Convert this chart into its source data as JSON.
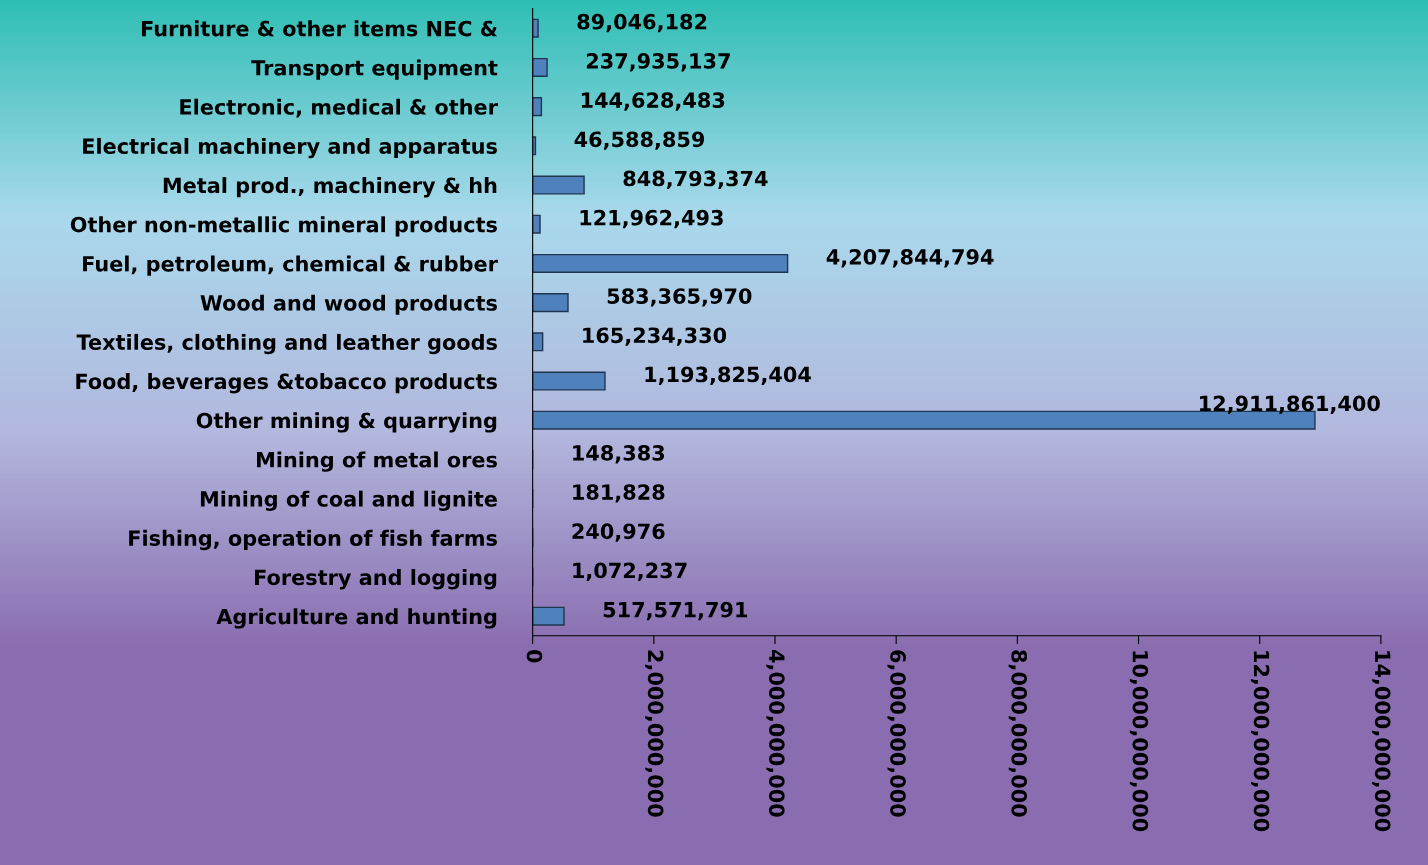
{
  "chart_data": {
    "type": "bar",
    "orientation": "horizontal",
    "categories": [
      "Furniture & other items NEC &",
      "Transport equipment",
      "Electronic, medical & other",
      "Electrical machinery and apparatus",
      "Metal prod., machinery & hh",
      "Other non-metallic mineral products",
      "Fuel, petroleum, chemical & rubber",
      "Wood and wood products",
      "Textiles, clothing and leather goods",
      "Food, beverages &tobacco products",
      "Other mining & quarrying",
      "Mining of metal ores",
      "Mining of coal and lignite",
      "Fishing, operation of fish farms",
      "Forestry and logging",
      "Agriculture and hunting"
    ],
    "values": [
      89046182,
      237935137,
      144628483,
      46588859,
      848793374,
      121962493,
      4207844794,
      583365970,
      165234330,
      1193825404,
      12911861400,
      148383,
      181828,
      240976,
      1072237,
      517571791
    ],
    "value_labels": [
      "89,046,182",
      "237,935,137",
      "144,628,483",
      "46,588,859",
      "848,793,374",
      "121,962,493",
      "4,207,844,794",
      "583,365,970",
      "165,234,330",
      "1,193,825,404",
      "12,911,861,400",
      "148,383",
      "181,828",
      "240,976",
      "1,072,237",
      "517,571,791"
    ],
    "color": "#4f81bd",
    "xlim": [
      0,
      14000000000
    ],
    "xticks": [
      0,
      {
        "value": 2000000000,
        "label": "2,000,000,000"
      },
      {
        "value": 4000000000,
        "label": "4,000,000,000"
      },
      {
        "value": 6000000000,
        "label": "6,000,000,000"
      },
      {
        "value": 8000000000,
        "label": "8,000,000,000"
      },
      {
        "value": 10000000000,
        "label": "10,000,000,000"
      },
      {
        "value": 12000000000,
        "label": "12,000,000,000"
      },
      {
        "value": 14000000000,
        "label": "14,000,000,000"
      }
    ],
    "grid": false,
    "legend": false
  }
}
